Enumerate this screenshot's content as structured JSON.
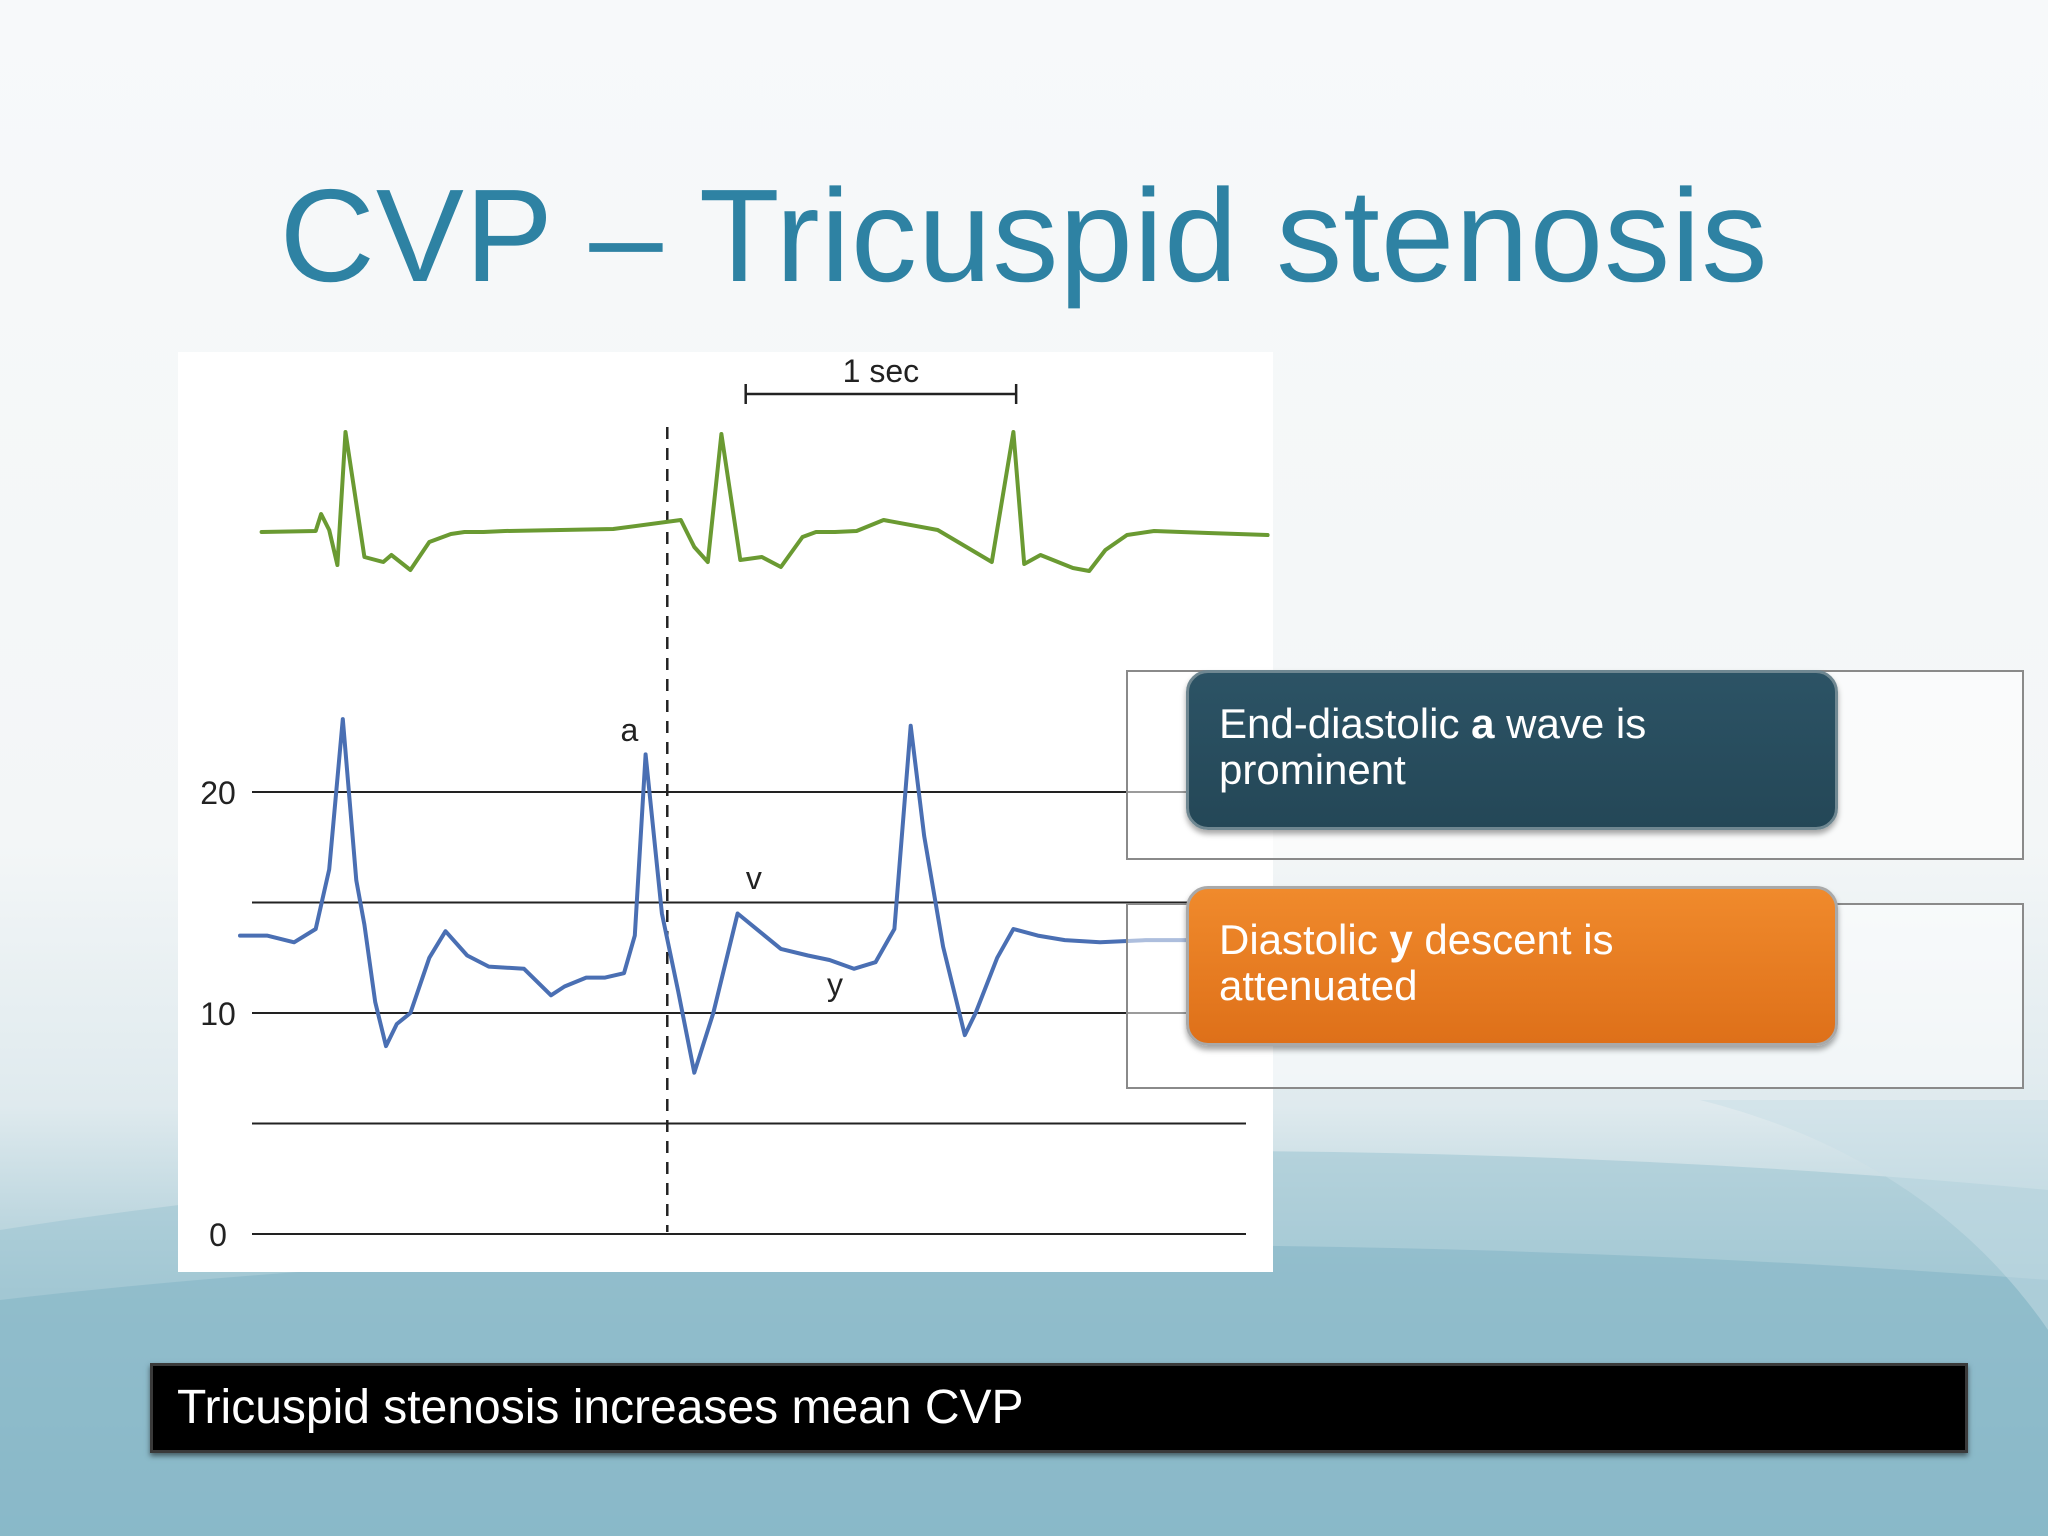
{
  "slide": {
    "title": "CVP – Tricuspid stenosis",
    "footer_text": "Tricuspid stenosis increases mean CVP"
  },
  "callouts": [
    {
      "before": "End-diastolic ",
      "bold": "a",
      "after": " wave is prominent",
      "color": "#2a4e5f"
    },
    {
      "before": "Diastolic ",
      "bold": "y",
      "after": " descent is attenuated",
      "color": "#e87a22"
    }
  ],
  "chart_data": {
    "type": "line",
    "time_scale_label": "1 sec",
    "yticks": [
      0,
      10,
      20
    ],
    "ylim": [
      0,
      22
    ],
    "gridlines": [
      0,
      5,
      10,
      15,
      20
    ],
    "series": [
      {
        "role": "ecg",
        "color": "#6a9a32",
        "x": [
          0,
          0.2,
          0.22,
          0.25,
          0.28,
          0.31,
          0.38,
          0.45,
          0.48,
          0.55,
          0.62,
          0.7,
          0.75,
          0.82,
          0.9,
          1.3,
          1.55,
          1.6,
          1.65,
          1.7,
          1.77,
          1.85,
          1.92,
          2.0,
          2.05,
          2.12,
          2.2,
          2.3,
          2.5,
          2.7,
          2.78,
          2.82,
          2.88,
          3.0,
          3.06,
          3.12,
          3.2,
          3.3,
          3.5,
          3.72
        ],
        "y": [
          0,
          0.01,
          0.18,
          0.02,
          -0.33,
          1.0,
          -0.25,
          -0.3,
          -0.23,
          -0.38,
          -0.1,
          -0.02,
          0,
          0,
          0.01,
          0.03,
          0.12,
          -0.15,
          -0.3,
          0.98,
          -0.28,
          -0.25,
          -0.35,
          -0.05,
          0,
          0,
          0.01,
          0.12,
          0.02,
          -0.3,
          1.0,
          -0.32,
          -0.23,
          -0.36,
          -0.39,
          -0.18,
          -0.03,
          0.01,
          -0.01,
          -0.03
        ]
      },
      {
        "role": "cvp",
        "color": "#4a6fb3",
        "x": [
          0,
          0.1,
          0.2,
          0.28,
          0.33,
          0.38,
          0.43,
          0.46,
          0.5,
          0.54,
          0.58,
          0.63,
          0.7,
          0.76,
          0.84,
          0.92,
          1.05,
          1.15,
          1.2,
          1.28,
          1.35,
          1.42,
          1.46,
          1.5,
          1.56,
          1.62,
          1.68,
          1.75,
          1.84,
          1.92,
          2.0,
          2.1,
          2.18,
          2.27,
          2.35,
          2.42,
          2.48,
          2.53,
          2.6,
          2.68,
          2.72,
          2.8,
          2.86,
          2.95,
          3.05,
          3.18,
          3.35,
          3.55
        ],
        "y": [
          13.5,
          13.5,
          13.2,
          13.8,
          16.5,
          23.3,
          16.0,
          14.0,
          10.5,
          8.5,
          9.5,
          10.0,
          12.5,
          13.7,
          12.6,
          12.1,
          12.0,
          10.8,
          11.2,
          11.6,
          11.6,
          11.8,
          13.5,
          21.7,
          14.5,
          11.0,
          7.3,
          10.0,
          14.5,
          13.7,
          12.9,
          12.6,
          12.4,
          12.0,
          12.3,
          13.8,
          23.0,
          18.0,
          13.0,
          9.0,
          10.0,
          12.5,
          13.8,
          13.5,
          13.3,
          13.2,
          13.3,
          13.3
        ]
      }
    ],
    "annotations": [
      {
        "text": "a",
        "x": 1.44,
        "y": 22.3
      },
      {
        "text": "v",
        "x": 1.9,
        "y": 15.6
      },
      {
        "text": "y",
        "x": 2.2,
        "y": 10.8
      }
    ],
    "vertical_marker_x": 1.58,
    "scale_bar": {
      "x_start": 1.87,
      "x_end": 2.87
    }
  }
}
